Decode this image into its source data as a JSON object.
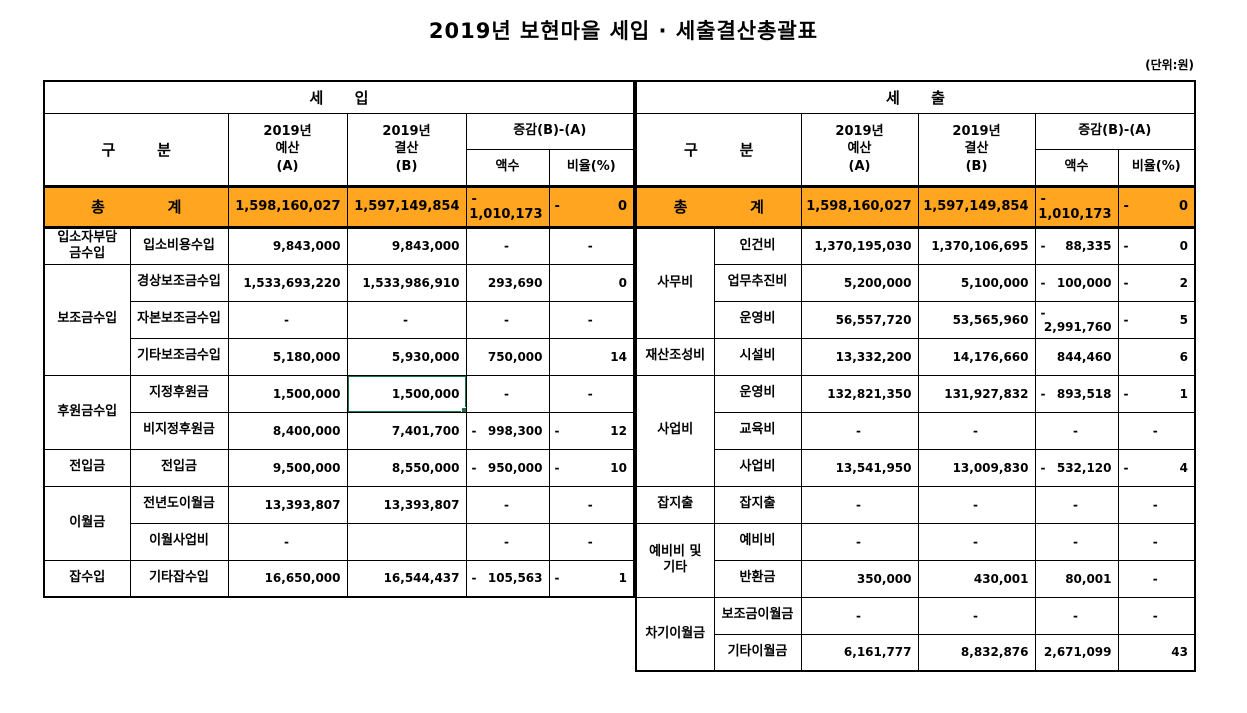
{
  "title": "2019년 보현마을 세입 · 세출결산총괄표",
  "unit_label": "(단위:원)",
  "colors": {
    "total_row_bg": "#FFA51F",
    "selection_border": "#1F7246",
    "grid_line": "#000000"
  },
  "columns": {
    "category": "구        분",
    "budget": "2019년\n예산\n(A)",
    "settlement": "2019년\n결산\n(B)",
    "change": "증감(B)-(A)",
    "amount": "액수",
    "ratio": "비율(%)"
  },
  "revenue": {
    "section_title": "세      입",
    "total": {
      "label": "총            계",
      "budget": "1,598,160,027",
      "settlement": "1,597,149,854",
      "amount": "-1,010,173",
      "ratio": "-0"
    },
    "rows": [
      {
        "group": "입소자부담\n금수입",
        "group_span": 1,
        "item": "입소비용수입",
        "budget": "9,843,000",
        "settlement": "9,843,000",
        "amount": "-",
        "ratio": "-"
      },
      {
        "group": "보조금수입",
        "group_span": 3,
        "item": "경상보조금수입",
        "budget": "1,533,693,220",
        "settlement": "1,533,986,910",
        "amount": "293,690",
        "ratio": "0"
      },
      {
        "item": "자본보조금수입",
        "budget": "-",
        "settlement": "-",
        "amount": "-",
        "ratio": "-"
      },
      {
        "item": "기타보조금수입",
        "budget": "5,180,000",
        "settlement": "5,930,000",
        "amount": "750,000",
        "ratio": "14"
      },
      {
        "group": "후원금수입",
        "group_span": 2,
        "item": "지정후원금",
        "budget": "1,500,000",
        "settlement": "1,500,000",
        "amount": "-",
        "ratio": "-",
        "selected": true
      },
      {
        "item": "비지정후원금",
        "budget": "8,400,000",
        "settlement": "7,401,700",
        "amount": "-998,300",
        "ratio": "-12"
      },
      {
        "group": "전입금",
        "group_span": 1,
        "item": "전입금",
        "budget": "9,500,000",
        "settlement": "8,550,000",
        "amount": "-950,000",
        "ratio": "-10"
      },
      {
        "group": "이월금",
        "group_span": 2,
        "item": "전년도이월금",
        "budget": "13,393,807",
        "settlement": "13,393,807",
        "amount": "-",
        "ratio": "-"
      },
      {
        "item": "이월사업비",
        "budget": "-",
        "settlement": "",
        "amount": "-",
        "ratio": "-"
      },
      {
        "group": "잡수입",
        "group_span": 1,
        "item": "기타잡수입",
        "budget": "16,650,000",
        "settlement": "16,544,437",
        "amount": "-105,563",
        "ratio": "-1"
      }
    ]
  },
  "expenditure": {
    "section_title": "세      출",
    "total": {
      "label": "총            계",
      "budget": "1,598,160,027",
      "settlement": "1,597,149,854",
      "amount": "-1,010,173",
      "ratio": "-0"
    },
    "rows": [
      {
        "group": "사무비",
        "group_span": 3,
        "item": "인건비",
        "budget": "1,370,195,030",
        "settlement": "1,370,106,695",
        "amount": "-88,335",
        "ratio": "-0"
      },
      {
        "item": "업무추진비",
        "budget": "5,200,000",
        "settlement": "5,100,000",
        "amount": "-100,000",
        "ratio": "-2"
      },
      {
        "item": "운영비",
        "budget": "56,557,720",
        "settlement": "53,565,960",
        "amount": "-2,991,760",
        "ratio": "-5"
      },
      {
        "group": "재산조성비",
        "group_span": 1,
        "item": "시설비",
        "budget": "13,332,200",
        "settlement": "14,176,660",
        "amount": "844,460",
        "ratio": "6"
      },
      {
        "group": "사업비",
        "group_span": 3,
        "item": "운영비",
        "budget": "132,821,350",
        "settlement": "131,927,832",
        "amount": "-893,518",
        "ratio": "-1"
      },
      {
        "item": "교육비",
        "budget": "-",
        "settlement": "-",
        "amount": "-",
        "ratio": "-"
      },
      {
        "item": "사업비",
        "budget": "13,541,950",
        "settlement": "13,009,830",
        "amount": "-532,120",
        "ratio": "-4"
      },
      {
        "group": "잡지출",
        "group_span": 1,
        "item": "잡지출",
        "budget": "-",
        "settlement": "-",
        "amount": "-",
        "ratio": "-"
      },
      {
        "group": "예비비 및\n기타",
        "group_span": 2,
        "item": "예비비",
        "budget": "-",
        "settlement": "-",
        "amount": "-",
        "ratio": "-"
      },
      {
        "item": "반환금",
        "budget": "350,000",
        "settlement": "430,001",
        "amount": "80,001",
        "ratio": "-"
      },
      {
        "group": "차기이월금",
        "group_span": 2,
        "item": "보조금이월금",
        "budget": "-",
        "settlement": "-",
        "amount": "-",
        "ratio": "-"
      },
      {
        "item": "기타이월금",
        "budget": "6,161,777",
        "settlement": "8,832,876",
        "amount": "2,671,099",
        "ratio": "43"
      }
    ]
  }
}
